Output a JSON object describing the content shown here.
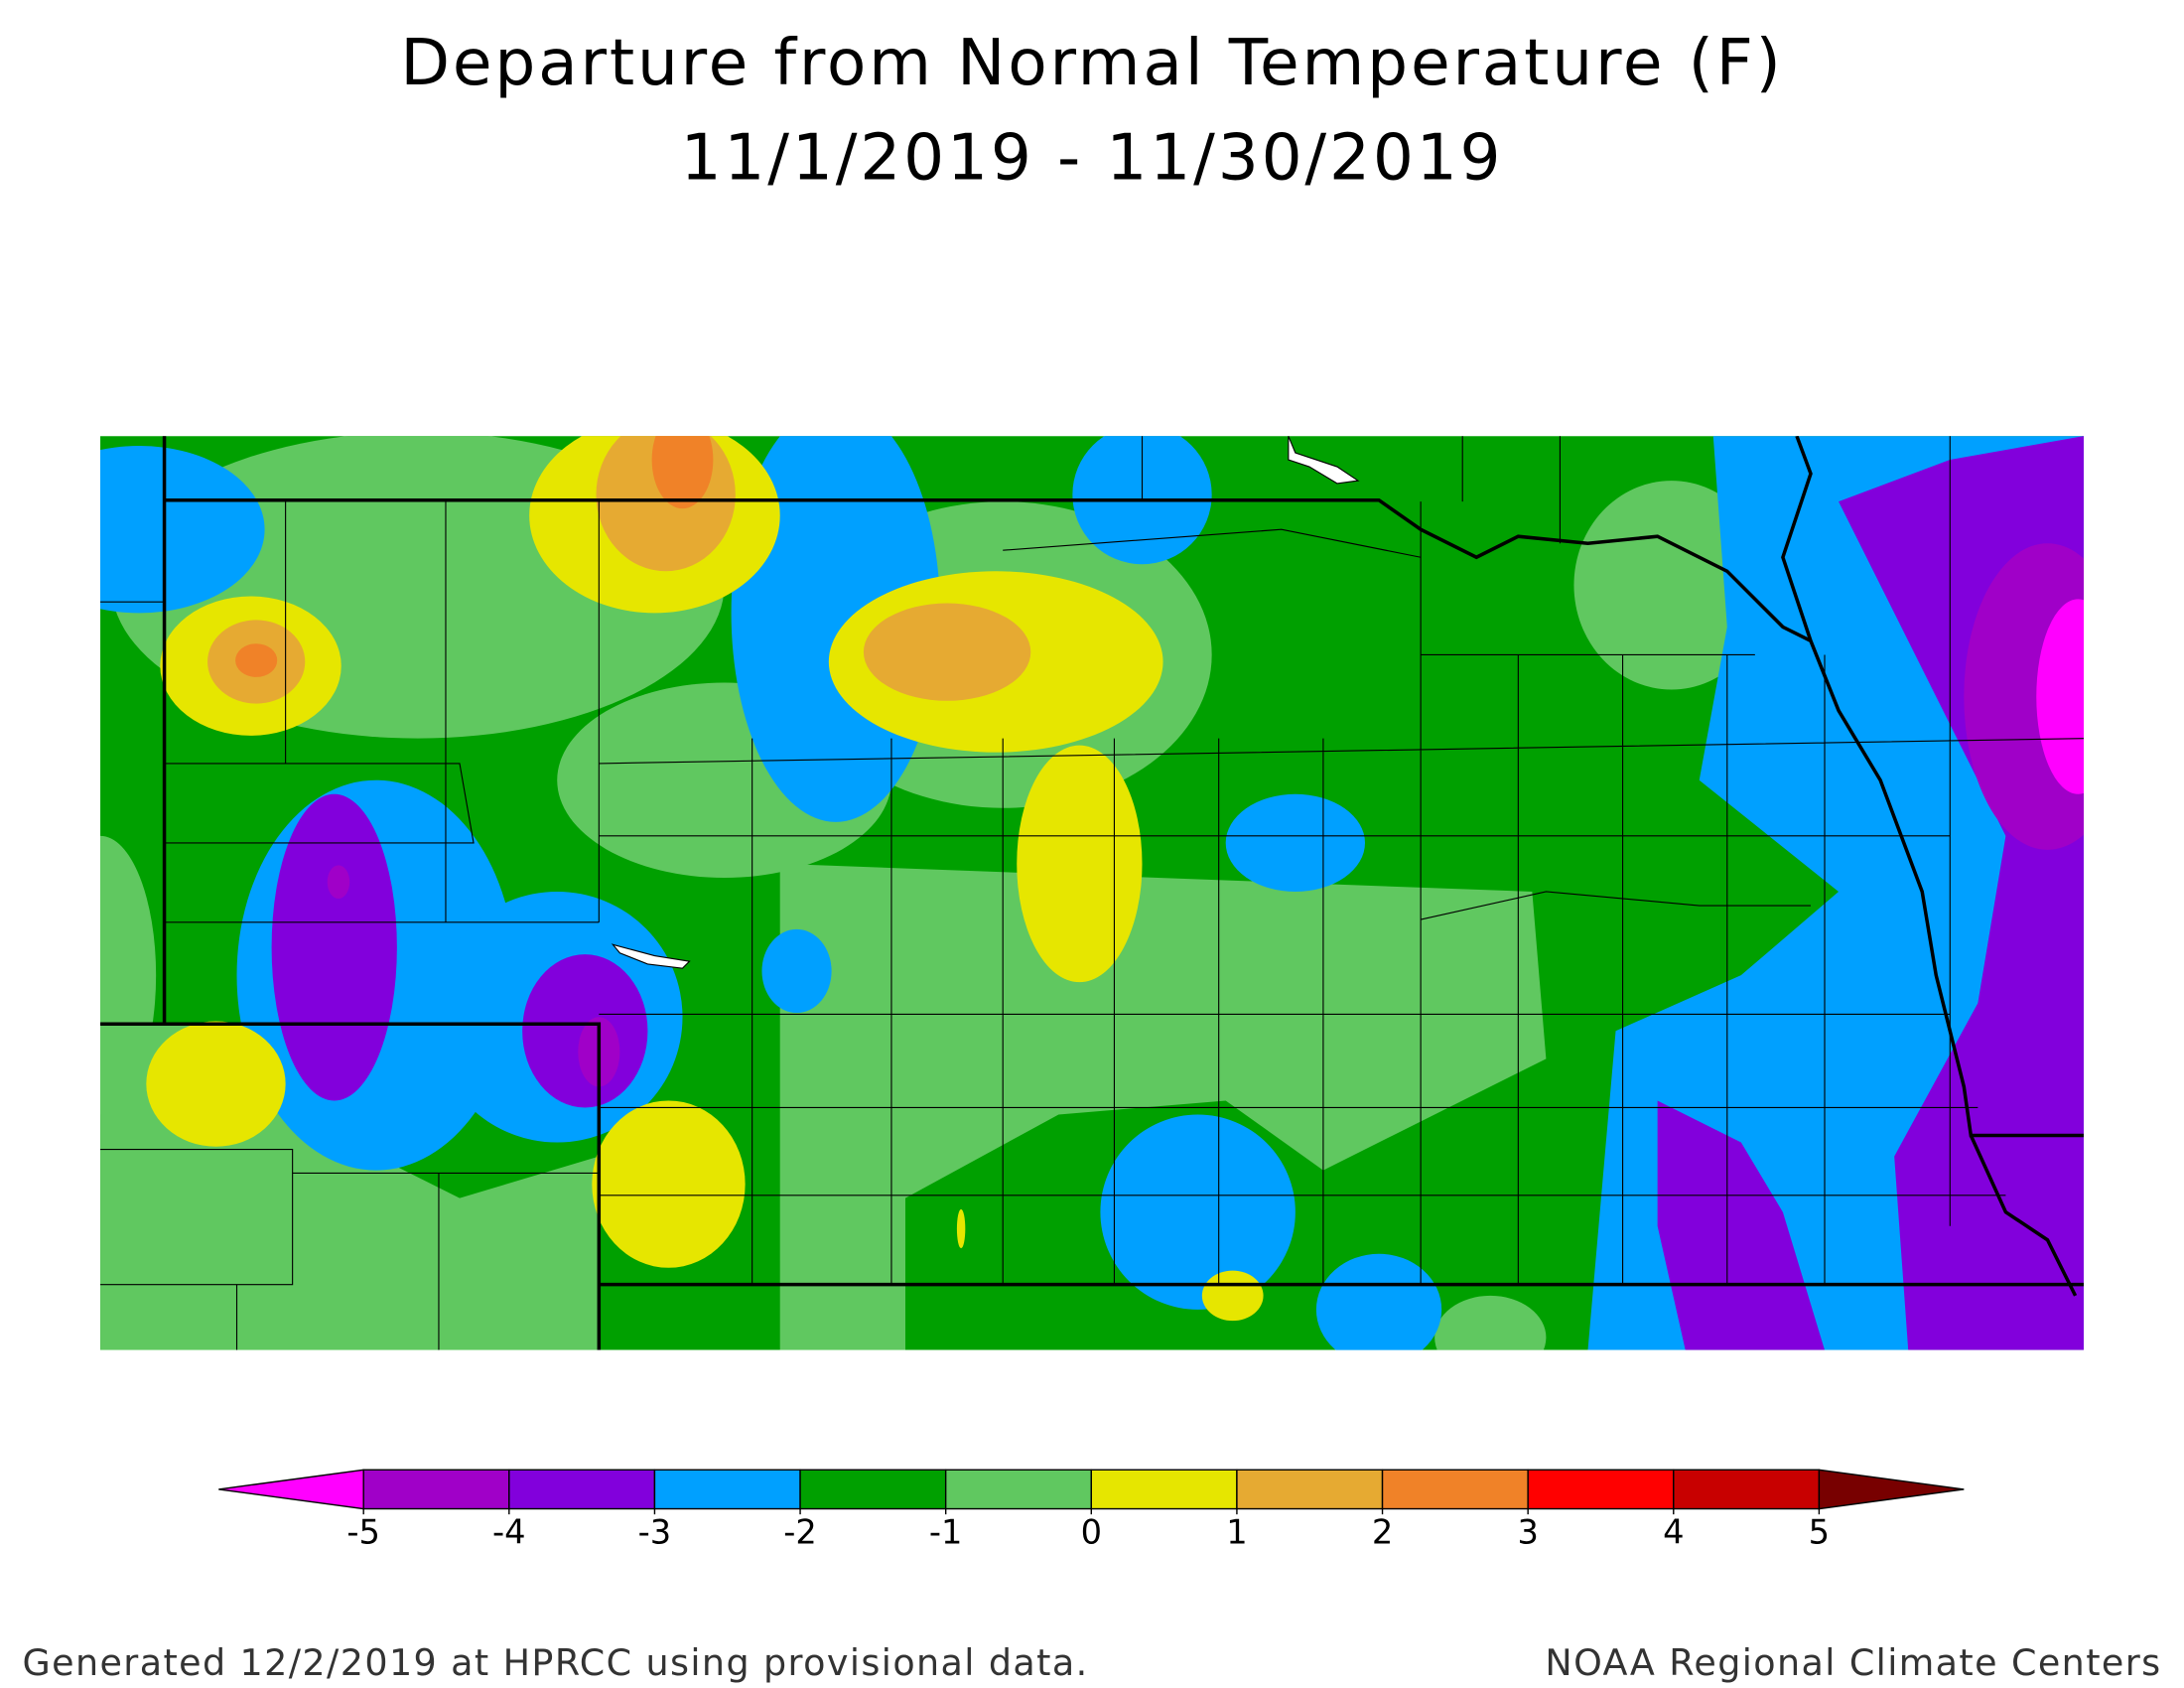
{
  "title": "Departure from Normal Temperature (F)",
  "subtitle": "11/1/2019 - 11/30/2019",
  "legend": {
    "ticks": [
      -5,
      -4,
      -3,
      -2,
      -1,
      0,
      1,
      2,
      3,
      4,
      5
    ],
    "colors": [
      "#ff00ff",
      "#a000c8",
      "#8200dc",
      "#00a0ff",
      "#00a000",
      "#60c860",
      "#e6e600",
      "#e6aa32",
      "#f08228",
      "#ff0000",
      "#c80000",
      "#780000"
    ]
  },
  "footer": {
    "left": "Generated 12/2/2019 at HPRCC using provisional data.",
    "right": "NOAA Regional Climate Centers"
  }
}
